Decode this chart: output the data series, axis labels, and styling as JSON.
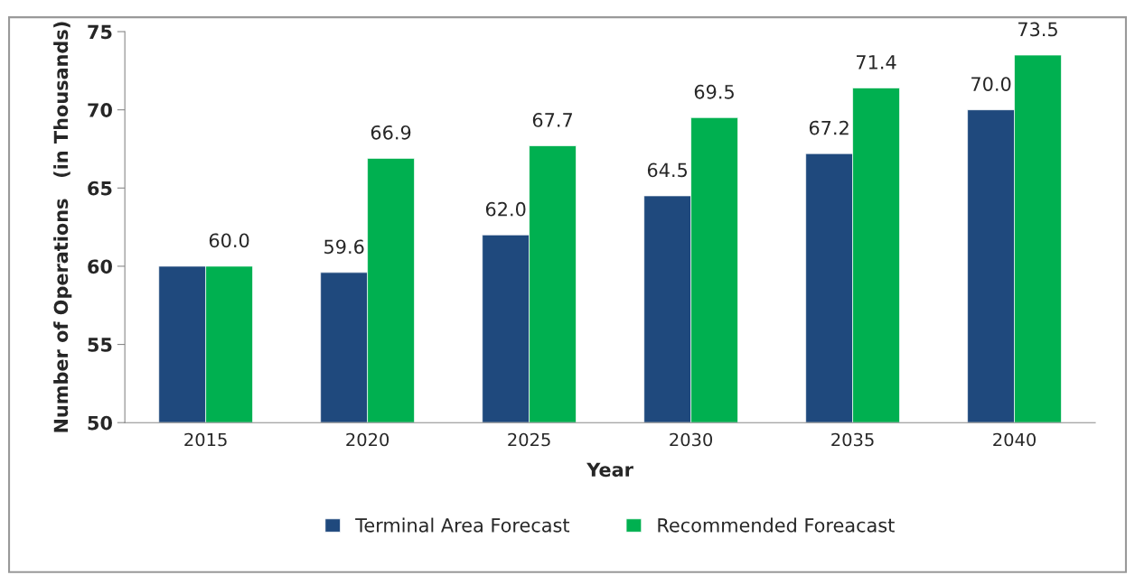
{
  "chart_data": {
    "type": "bar",
    "xlabel": "Year",
    "ylabel": "Number of Operations   (in Thousands)",
    "categories": [
      "2015",
      "2020",
      "2025",
      "2030",
      "2035",
      "2040"
    ],
    "series": [
      {
        "name": "Terminal Area Forecast",
        "color": "#1f497d",
        "values": [
          60.0,
          59.6,
          62.0,
          64.5,
          67.2,
          70.0
        ],
        "value_labels": [
          null,
          "59.6",
          "62.0",
          "64.5",
          "67.2",
          "70.0"
        ]
      },
      {
        "name": "Recommended Foreacast",
        "color": "#00b050",
        "values": [
          60.0,
          66.9,
          67.7,
          69.5,
          71.4,
          73.5
        ],
        "value_labels": [
          "60.0",
          "66.9",
          "67.7",
          "69.5",
          "71.4",
          "73.5"
        ]
      }
    ],
    "ylim": [
      50,
      75
    ],
    "yticks": [
      50,
      55,
      60,
      65,
      70,
      75
    ],
    "grid": false,
    "legend": "bottom"
  }
}
